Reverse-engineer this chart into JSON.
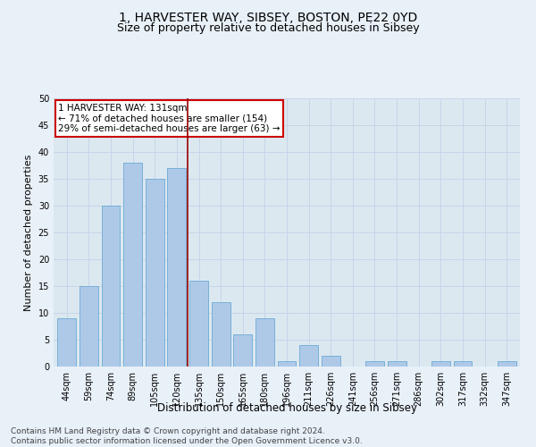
{
  "title": "1, HARVESTER WAY, SIBSEY, BOSTON, PE22 0YD",
  "subtitle": "Size of property relative to detached houses in Sibsey",
  "xlabel": "Distribution of detached houses by size in Sibsey",
  "ylabel": "Number of detached properties",
  "categories": [
    "44sqm",
    "59sqm",
    "74sqm",
    "89sqm",
    "105sqm",
    "120sqm",
    "135sqm",
    "150sqm",
    "165sqm",
    "180sqm",
    "196sqm",
    "211sqm",
    "226sqm",
    "241sqm",
    "256sqm",
    "271sqm",
    "286sqm",
    "302sqm",
    "317sqm",
    "332sqm",
    "347sqm"
  ],
  "values": [
    9,
    15,
    30,
    38,
    35,
    37,
    16,
    12,
    6,
    9,
    1,
    4,
    2,
    0,
    1,
    1,
    0,
    1,
    1,
    0,
    1
  ],
  "bar_color": "#aec9e8",
  "bar_edge_color": "#6aaad4",
  "grid_color": "#c8d4e8",
  "background_color": "#dce8f0",
  "fig_background_color": "#e8f0f8",
  "vline_index": 6,
  "vline_color": "#990000",
  "annotation_text": "1 HARVESTER WAY: 131sqm\n← 71% of detached houses are smaller (154)\n29% of semi-detached houses are larger (63) →",
  "annotation_box_facecolor": "#ffffff",
  "annotation_box_edgecolor": "#cc0000",
  "ylim": [
    0,
    50
  ],
  "yticks": [
    0,
    5,
    10,
    15,
    20,
    25,
    30,
    35,
    40,
    45,
    50
  ],
  "footer_text": "Contains HM Land Registry data © Crown copyright and database right 2024.\nContains public sector information licensed under the Open Government Licence v3.0.",
  "title_fontsize": 10,
  "subtitle_fontsize": 9,
  "xlabel_fontsize": 8.5,
  "ylabel_fontsize": 8,
  "tick_fontsize": 7,
  "annotation_fontsize": 7.5,
  "footer_fontsize": 6.5
}
